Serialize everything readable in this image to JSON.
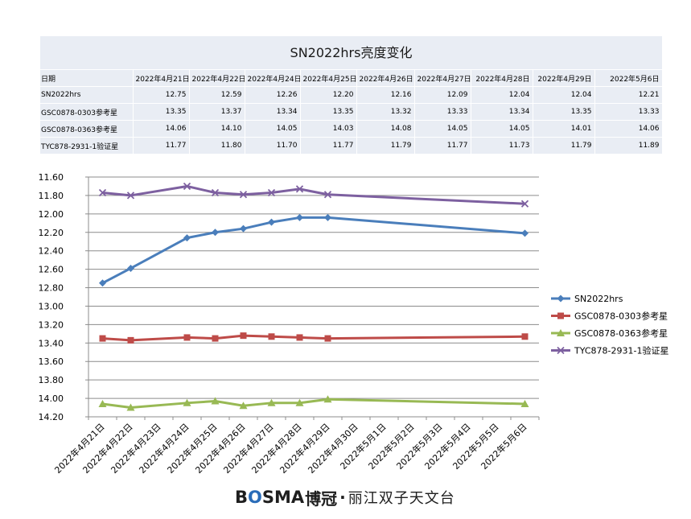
{
  "chart_data": {
    "type": "line",
    "title": "SN2022hrs亮度变化",
    "table": {
      "header_label": "日期",
      "dates": [
        "2022年4月21日",
        "2022年4月22日",
        "2022年4月24日",
        "2022年4月25日",
        "2022年4月26日",
        "2022年4月27日",
        "2022年4月28日",
        "2022年4月29日",
        "2022年5月6日"
      ],
      "rows": [
        {
          "name": "SN2022hrs",
          "values": [
            "12.75",
            "12.59",
            "12.26",
            "12.20",
            "12.16",
            "12.09",
            "12.04",
            "12.04",
            "12.21"
          ]
        },
        {
          "name": "GSC0878-0303参考星",
          "values": [
            "13.35",
            "13.37",
            "13.34",
            "13.35",
            "13.32",
            "13.33",
            "13.34",
            "13.35",
            "13.33"
          ]
        },
        {
          "name": "GSC0878-0363参考星",
          "values": [
            "14.06",
            "14.10",
            "14.05",
            "14.03",
            "14.08",
            "14.05",
            "14.05",
            "14.01",
            "14.06"
          ]
        },
        {
          "name": "TYC878-2931-1验证星",
          "values": [
            "11.77",
            "11.80",
            "11.70",
            "11.77",
            "11.79",
            "11.77",
            "11.73",
            "11.79",
            "11.89"
          ]
        }
      ]
    },
    "x_categories": [
      "2022年4月21日",
      "2022年4月22日",
      "2022年4月23日",
      "2022年4月24日",
      "2022年4月25日",
      "2022年4月26日",
      "2022年4月27日",
      "2022年4月28日",
      "2022年4月29日",
      "2022年4月30日",
      "2022年5月1日",
      "2022年5月2日",
      "2022年5月3日",
      "2022年5月4日",
      "2022年5月5日",
      "2022年5月6日"
    ],
    "y_ticks": [
      "11.60",
      "11.80",
      "12.00",
      "12.20",
      "12.40",
      "12.60",
      "12.80",
      "13.00",
      "13.20",
      "13.40",
      "13.60",
      "13.80",
      "14.00",
      "14.20"
    ],
    "ylim": [
      11.6,
      14.2
    ],
    "y_inverted": true,
    "grid": true,
    "legend_position": "right",
    "series": [
      {
        "name": "SN2022hrs",
        "color": "#4a7ebb",
        "marker": "diamond",
        "points": [
          [
            "2022年4月21日",
            12.75
          ],
          [
            "2022年4月22日",
            12.59
          ],
          [
            "2022年4月24日",
            12.26
          ],
          [
            "2022年4月25日",
            12.2
          ],
          [
            "2022年4月26日",
            12.16
          ],
          [
            "2022年4月27日",
            12.09
          ],
          [
            "2022年4月28日",
            12.04
          ],
          [
            "2022年4月29日",
            12.04
          ],
          [
            "2022年5月6日",
            12.21
          ]
        ]
      },
      {
        "name": "GSC0878-0303参考星",
        "color": "#be4b48",
        "marker": "square",
        "points": [
          [
            "2022年4月21日",
            13.35
          ],
          [
            "2022年4月22日",
            13.37
          ],
          [
            "2022年4月24日",
            13.34
          ],
          [
            "2022年4月25日",
            13.35
          ],
          [
            "2022年4月26日",
            13.32
          ],
          [
            "2022年4月27日",
            13.33
          ],
          [
            "2022年4月28日",
            13.34
          ],
          [
            "2022年4月29日",
            13.35
          ],
          [
            "2022年5月6日",
            13.33
          ]
        ]
      },
      {
        "name": "GSC0878-0363参考星",
        "color": "#98b954",
        "marker": "triangle",
        "points": [
          [
            "2022年4月21日",
            14.06
          ],
          [
            "2022年4月22日",
            14.1
          ],
          [
            "2022年4月24日",
            14.05
          ],
          [
            "2022年4月25日",
            14.03
          ],
          [
            "2022年4月26日",
            14.08
          ],
          [
            "2022年4月27日",
            14.05
          ],
          [
            "2022年4月28日",
            14.05
          ],
          [
            "2022年4月29日",
            14.01
          ],
          [
            "2022年5月6日",
            14.06
          ]
        ]
      },
      {
        "name": "TYC878-2931-1验证星",
        "color": "#7d60a0",
        "marker": "cross",
        "points": [
          [
            "2022年4月21日",
            11.77
          ],
          [
            "2022年4月22日",
            11.8
          ],
          [
            "2022年4月24日",
            11.7
          ],
          [
            "2022年4月25日",
            11.77
          ],
          [
            "2022年4月26日",
            11.79
          ],
          [
            "2022年4月27日",
            11.77
          ],
          [
            "2022年4月28日",
            11.73
          ],
          [
            "2022年4月29日",
            11.79
          ],
          [
            "2022年5月6日",
            11.89
          ]
        ]
      }
    ]
  },
  "footer": {
    "brand_b": "B",
    "brand_o": "O",
    "brand_rest": "SMA",
    "brand_cn": "博冠",
    "separator": "·",
    "org": "丽江双子天文台"
  }
}
